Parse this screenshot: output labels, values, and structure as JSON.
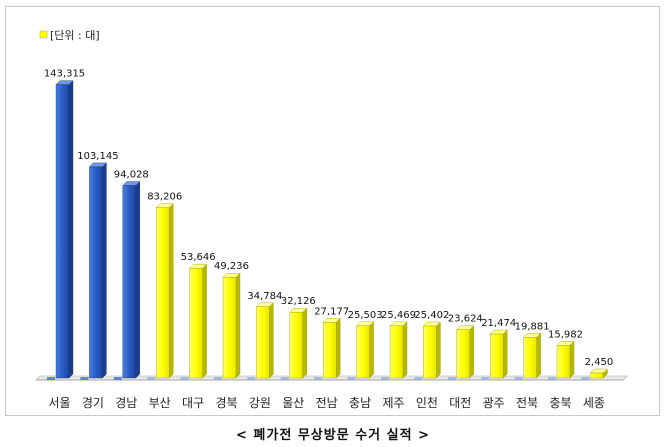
{
  "chart_data": {
    "type": "bar",
    "legend_label": "[단위 : 대]",
    "legend_color": "#ffff00",
    "categories": [
      "서울",
      "경기",
      "경남",
      "부산",
      "대구",
      "경북",
      "강원",
      "울산",
      "전남",
      "충남",
      "제주",
      "인천",
      "대전",
      "광주",
      "전북",
      "충북",
      "세종"
    ],
    "values": [
      143315,
      103145,
      94028,
      83206,
      53646,
      49236,
      34784,
      32126,
      27177,
      25503,
      25469,
      25402,
      23624,
      21474,
      19881,
      15982,
      2450
    ],
    "value_labels": [
      "143,315",
      "103,145",
      "94,028",
      "83,206",
      "53,646",
      "49,236",
      "34,784",
      "32,126",
      "27,177",
      "25,503",
      "25,469",
      "25,402",
      "23,624",
      "21,474",
      "19,881",
      "15,982",
      "2,450"
    ],
    "highlight_count": 3,
    "colors": {
      "highlight": "#2a5cc4",
      "normal": "#ffff00"
    },
    "ylim": [
      0,
      150000
    ],
    "caption": "< 폐가전 무상방문 수거 실적 >"
  }
}
